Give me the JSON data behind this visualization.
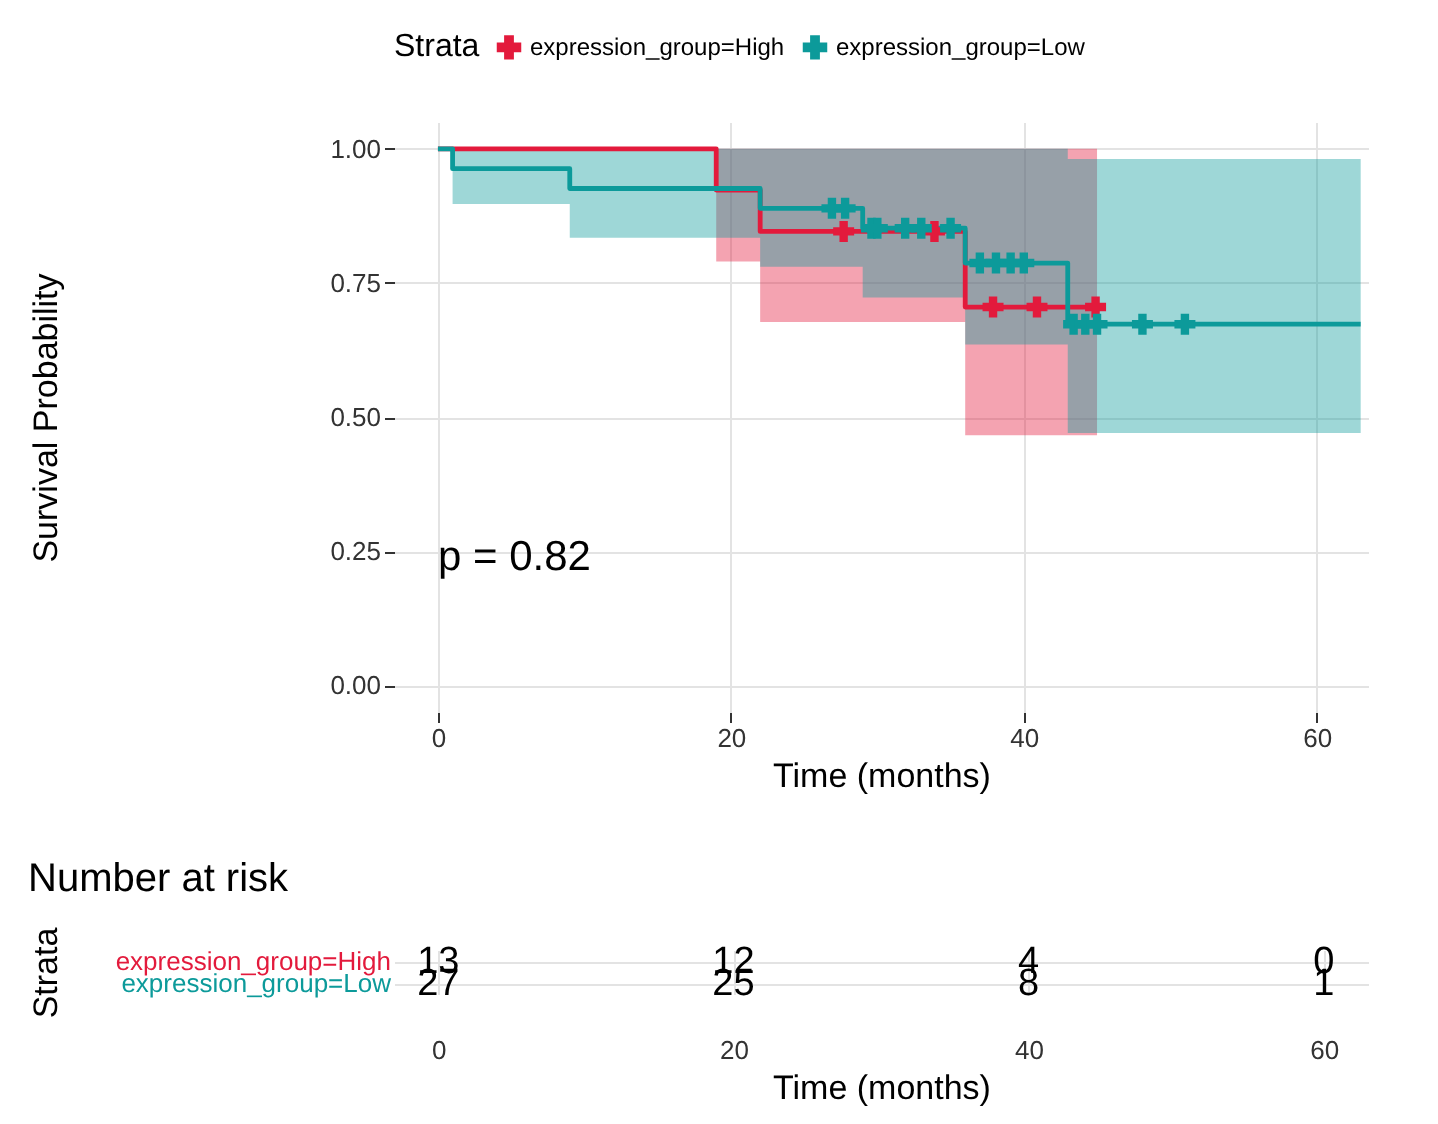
{
  "chart_data": [
    {
      "type": "step",
      "xlabel": "Time (months)",
      "ylabel": "Survival Probability",
      "legend_title": "Strata",
      "legend": "top",
      "grid": true,
      "annotations": [
        "p = 0.82"
      ],
      "xlim": [
        -3,
        63.5
      ],
      "xticks": [
        0,
        20,
        40,
        60
      ],
      "ylim": [
        -0.05,
        1.05
      ],
      "yticks": [
        {
          "value": 0,
          "label": "0.00"
        },
        {
          "value": 0.25,
          "label": "0.25"
        },
        {
          "value": 0.5,
          "label": "0.50"
        },
        {
          "value": 0.75,
          "label": "0.75"
        },
        {
          "value": 1,
          "label": "1.00"
        }
      ],
      "series": [
        {
          "name": "expression_group=High",
          "type": "step",
          "color": "#e31a3c",
          "x": [
            0,
            19,
            22,
            36,
            45
          ],
          "values": [
            1,
            0.923,
            0.846,
            0.705,
            0.705
          ],
          "lower": [
            1,
            0.79,
            0.677,
            0.466,
            0.466
          ],
          "upper": [
            1,
            1,
            1,
            1,
            1
          ]
        },
        {
          "name": "expression_group=Low",
          "type": "step",
          "color": "#0c9a9a",
          "x": [
            0,
            1,
            9,
            22,
            29,
            36,
            43,
            63
          ],
          "values": [
            1,
            0.963,
            0.926,
            0.889,
            0.852,
            0.787,
            0.673,
            0.673
          ],
          "lower": [
            1,
            0.897,
            0.834,
            0.78,
            0.723,
            0.635,
            0.47,
            0.47
          ],
          "upper": [
            1,
            1,
            1,
            1,
            1,
            1,
            0.981,
            0.981
          ]
        },
        {
          "type": "scatter",
          "marker": "cross",
          "color": "#e31a3c",
          "x": [
            27.7,
            33.9,
            37.9,
            40.9,
            44.9
          ],
          "values": [
            0.846,
            0.846,
            0.705,
            0.705,
            0.705
          ]
        },
        {
          "type": "scatter",
          "marker": "cross",
          "color": "#0c9a9a",
          "x": [
            26.9,
            27.8,
            29.6,
            30.0,
            31.9,
            33.0,
            35.0,
            37.0,
            38.1,
            39.1,
            40.0,
            43.4,
            44.2,
            45.0,
            48.1,
            51.0
          ],
          "values": [
            0.889,
            0.889,
            0.852,
            0.852,
            0.852,
            0.852,
            0.852,
            0.787,
            0.787,
            0.787,
            0.787,
            0.673,
            0.673,
            0.673,
            0.673,
            0.673
          ]
        }
      ]
    },
    {
      "type": "heatmap",
      "title": "Number at risk",
      "xlabel": "Time (months)",
      "ylabel": "Strata",
      "grid": true,
      "data_labels": true,
      "categories": [
        "0",
        "20",
        "40",
        "60"
      ],
      "y_categories": [
        "expression_group=High",
        "expression_group=Low"
      ],
      "cells": [
        [
          13,
          12,
          4,
          0
        ],
        [
          27,
          25,
          8,
          1
        ]
      ]
    }
  ]
}
